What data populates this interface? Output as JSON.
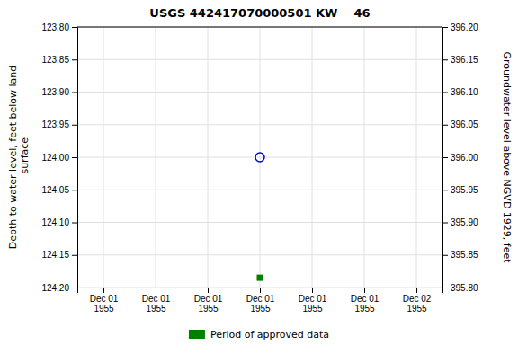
{
  "chart_data": {
    "type": "scatter",
    "title": "USGS 442417070000501 KW    46",
    "y_label": "Depth to water level, feet below land\n surface",
    "y2_label": "Groundwater level above NGVD 1929, feet",
    "categories": [
      "Dec 01\n1955",
      "Dec 01\n1955",
      "Dec 01\n1955",
      "Dec 01\n1955",
      "Dec 01\n1955",
      "Dec 01\n1955",
      "Dec 02\n1955"
    ],
    "series": [
      {
        "color": "#0000CC",
        "marker": "circle",
        "values": [
          null,
          null,
          null,
          124.0,
          null,
          null,
          null
        ]
      },
      {
        "name": "Period of approved data",
        "color": "#008000",
        "marker": "square",
        "values": [
          null,
          null,
          null,
          124.185,
          null,
          null,
          null
        ]
      }
    ],
    "ylim": [
      124.2,
      123.8
    ],
    "yticks": [
      {
        "value": 123.8,
        "label": "123.80"
      },
      123.85,
      {
        "value": 123.9,
        "label": "123.90"
      },
      123.95,
      {
        "value": 124.0,
        "label": "124.00"
      },
      124.05,
      {
        "value": 124.1,
        "label": "124.10"
      },
      124.15,
      {
        "value": 124.2,
        "label": "124.20"
      }
    ],
    "y2lim": [
      395.8,
      396.2
    ],
    "y2ticks": [
      {
        "value": 396.2,
        "label": "396.20"
      },
      396.15,
      {
        "value": 396.1,
        "label": "396.10"
      },
      396.05,
      {
        "value": 396.0,
        "label": "396.00"
      },
      395.95,
      {
        "value": 395.9,
        "label": "395.90"
      },
      395.85,
      {
        "value": 395.8,
        "label": "395.80"
      }
    ],
    "grid": true,
    "legend": "bottom"
  }
}
